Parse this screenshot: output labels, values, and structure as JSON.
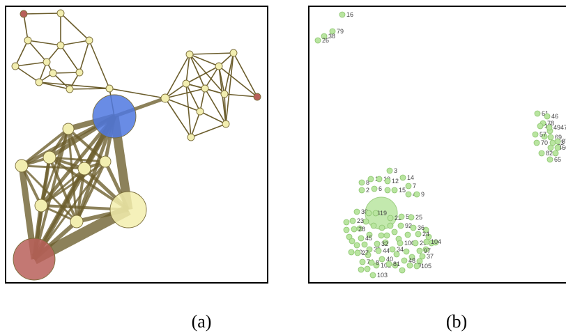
{
  "figure": {
    "panels": [
      {
        "id": "a",
        "caption": "(a)",
        "node_colors": {
          "small": "#f2eeb0",
          "big_blue": "#4f78e0",
          "big_red": "#b8605a",
          "big_yellow": "#f3efae",
          "accent_red": "#b8605a"
        },
        "edge_color": "#6b5d2c"
      },
      {
        "id": "b",
        "caption": "(b)",
        "node_color": "#b9e5a0",
        "node_labels": [
          "16",
          "79",
          "38",
          "26",
          "3",
          "8",
          "11",
          "10",
          "12",
          "14",
          "2",
          "6",
          "1",
          "15",
          "7",
          "4",
          "9",
          "30",
          "13",
          "19",
          "23",
          "22",
          "50",
          "25",
          "28",
          "92",
          "36",
          "24",
          "45",
          "32",
          "20",
          "35",
          "100",
          "29",
          "104",
          "27",
          "44",
          "34",
          "97",
          "74",
          "40",
          "48",
          "37",
          "102",
          "8",
          "81",
          "60",
          "105",
          "103",
          "61",
          "46",
          "78",
          "19",
          "4947",
          "57",
          "69",
          "70",
          "23",
          "87",
          "44",
          "66",
          "82",
          "65"
        ]
      }
    ]
  }
}
